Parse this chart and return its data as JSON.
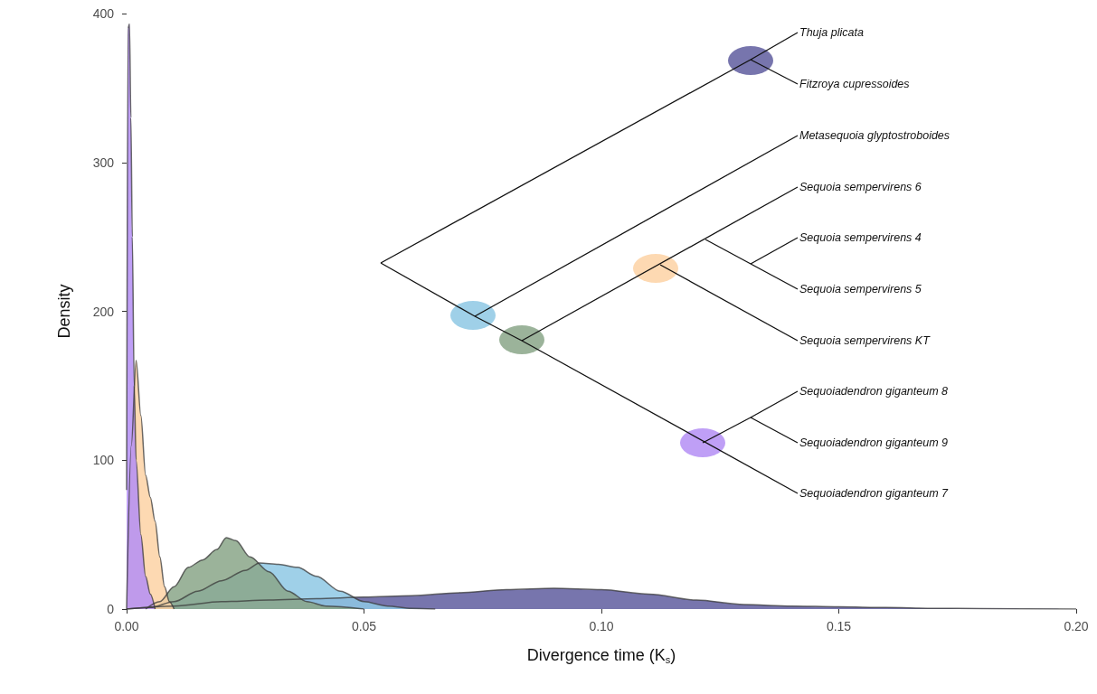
{
  "chart_data": {
    "type": "area",
    "xlabel": "Divergence time (K$_{s}$)",
    "ylabel": "Density",
    "xlim": [
      0,
      0.2
    ],
    "xticks": [
      {
        "value": 0,
        "label": "0.00"
      },
      {
        "value": 0.05,
        "label": "0.05"
      },
      {
        "value": 0.1,
        "label": "0.10"
      },
      {
        "value": 0.15,
        "label": "0.15"
      },
      {
        "value": 0.2,
        "label": "0.20"
      }
    ],
    "ylim": [
      0,
      400
    ],
    "yticks": [
      0,
      100,
      200,
      300,
      400
    ],
    "grid": false,
    "marker": "none",
    "line_style": "solid",
    "series": [
      {
        "color": "#5f5d9f",
        "x": [
          0,
          0.01,
          0.02,
          0.03,
          0.04,
          0.05,
          0.06,
          0.07,
          0.08,
          0.09,
          0.1,
          0.11,
          0.12,
          0.13,
          0.14,
          0.15,
          0.16,
          0.17,
          0.18,
          0.2
        ],
        "values": [
          0,
          2,
          5,
          6,
          7,
          8,
          9,
          11,
          13,
          14,
          13,
          10,
          6,
          3,
          2,
          1.5,
          1,
          0.5,
          0.3,
          0
        ]
      },
      {
        "color": "#8ec8e4",
        "x": [
          0,
          0.005,
          0.01,
          0.015,
          0.02,
          0.025,
          0.028,
          0.032,
          0.036,
          0.04,
          0.045,
          0.05,
          0.055,
          0.06,
          0.065
        ],
        "values": [
          0,
          1,
          5,
          12,
          19,
          26,
          31,
          30,
          28,
          22,
          12,
          5,
          2,
          0.5,
          0
        ]
      },
      {
        "color": "#8aa688",
        "x": [
          0.004,
          0.007,
          0.01,
          0.013,
          0.016,
          0.019,
          0.021,
          0.023,
          0.026,
          0.03,
          0.034,
          0.038,
          0.042,
          0.05
        ],
        "values": [
          0,
          5,
          15,
          28,
          33,
          40,
          48,
          46,
          35,
          25,
          12,
          5,
          2,
          0
        ]
      },
      {
        "color": "#fdd2a5",
        "x": [
          0,
          0.001,
          0.002,
          0.003,
          0.004,
          0.005,
          0.006,
          0.007,
          0.008,
          0.009,
          0.01
        ],
        "values": [
          0,
          110,
          167,
          130,
          90,
          75,
          59,
          35,
          15,
          5,
          0
        ]
      },
      {
        "color": "#b48ef5",
        "x": [
          0,
          0.0003,
          0.0006,
          0.0009,
          0.0012,
          0.0016,
          0.002,
          0.003,
          0.004,
          0.005,
          0.006
        ],
        "values": [
          80,
          390,
          393,
          330,
          250,
          150,
          100,
          50,
          22,
          10,
          0
        ]
      }
    ],
    "annotations": [
      "Thuja plicata",
      "Fitzroya cupressoides",
      "Metasequoia glyptostroboides",
      "Sequoia sempervirens 6",
      "Sequoia sempervirens 4",
      "Sequoia sempervirens 5",
      "Sequoia sempervirens KT",
      "Sequoiadendron giganteum 8",
      "Sequoiadendron giganteum 9",
      "Sequoiadendron giganteum 7"
    ]
  }
}
